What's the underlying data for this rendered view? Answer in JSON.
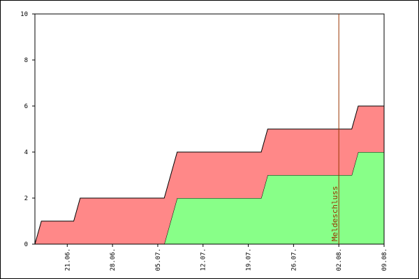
{
  "chart_data": {
    "type": "area",
    "stacked": true,
    "x": [
      "16.06.",
      "17.06.",
      "22.06.",
      "23.06.",
      "06.07.",
      "08.07.",
      "21.07.",
      "22.07.",
      "04.08.",
      "05.08.",
      "09.08."
    ],
    "series": [
      {
        "color": "#88ff88",
        "values": [
          0,
          0,
          0,
          0,
          0,
          2,
          2,
          3,
          3,
          4,
          4
        ]
      },
      {
        "color": "#ff8888",
        "values": [
          0,
          1,
          1,
          2,
          2,
          2,
          2,
          2,
          2,
          2,
          2
        ]
      }
    ],
    "xlim": [
      "16.06.",
      "09.08."
    ],
    "xticks": [
      "21.06.",
      "28.06.",
      "05.07.",
      "12.07.",
      "19.07.",
      "26.07.",
      "02.08.",
      "09.08."
    ],
    "ylim": [
      0,
      10
    ],
    "yticks": [
      0,
      2,
      4,
      6,
      8,
      10
    ],
    "annotations": [
      {
        "x": "02.08.",
        "label": "Meldeschluss",
        "color": "#993300"
      }
    ]
  }
}
